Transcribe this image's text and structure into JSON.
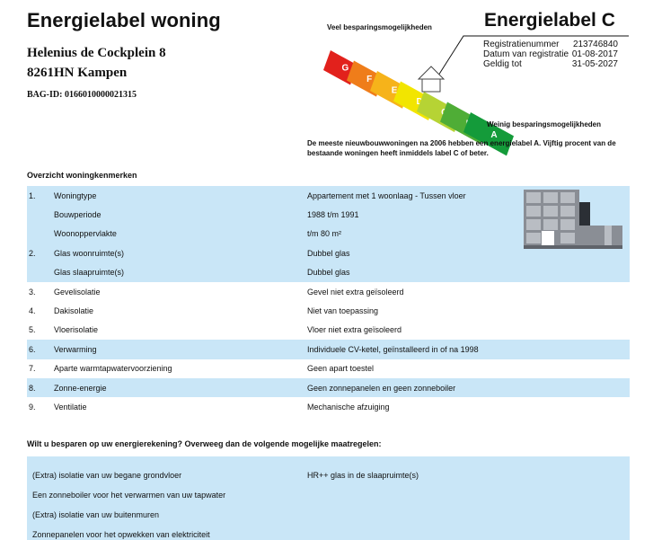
{
  "header": {
    "title": "Energielabel woning",
    "address_line1": "Helenius de Cockplein 8",
    "address_line2": "8261HN Kampen",
    "bag_id": "BAG-ID: 0166010000021315"
  },
  "label": {
    "heading": "Energielabel C",
    "rows": [
      {
        "key": "Registratienummer",
        "value": "213746840"
      },
      {
        "key": "Datum van registratie",
        "value": "01-08-2017"
      },
      {
        "key": "Geldig tot",
        "value": "31-05-2027"
      }
    ],
    "scale_top_text": "Veel besparingsmogelijkheden",
    "scale_bottom_text": "Weinig besparingsmogelijkheden",
    "classes": [
      "G",
      "F",
      "E",
      "D",
      "C",
      "B",
      "A"
    ],
    "class_colors": [
      "#e2211c",
      "#ef7d1a",
      "#f6b31a",
      "#f2e500",
      "#b6d334",
      "#4fad36",
      "#149b3a"
    ],
    "current_class": "C",
    "note": "De meeste nieuwbouwwoningen na 2006 hebben een energielabel A. Vijftig procent van de bestaande woningen heeft inmiddels label C of beter."
  },
  "overview": {
    "title": "Overzicht woningkenmerken",
    "rows": [
      {
        "num": "1.",
        "label": "Woningtype",
        "value": "Appartement met 1 woonlaag - Tussen vloer",
        "shaded": true
      },
      {
        "num": "",
        "label": "Bouwperiode",
        "value": "1988 t/m 1991",
        "shaded": true
      },
      {
        "num": "",
        "label": "Woonoppervlakte",
        "value": "t/m 80 m²",
        "shaded": true
      },
      {
        "num": "2.",
        "label": "Glas woonruimte(s)",
        "value": "Dubbel glas",
        "shaded": true
      },
      {
        "num": "",
        "label": "Glas slaapruimte(s)",
        "value": "Dubbel glas",
        "shaded": true
      },
      {
        "num": "3.",
        "label": "Gevelisolatie",
        "value": "Gevel niet extra geïsoleerd",
        "shaded": false
      },
      {
        "num": "4.",
        "label": "Dakisolatie",
        "value": "Niet van toepassing",
        "shaded": false
      },
      {
        "num": "5.",
        "label": "Vloerisolatie",
        "value": "Vloer niet extra geïsoleerd",
        "shaded": false
      },
      {
        "num": "6.",
        "label": "Verwarming",
        "value": "Individuele CV-ketel, geïnstalleerd in of na 1998",
        "shaded": true
      },
      {
        "num": "7.",
        "label": "Aparte warmtapwatervoorziening",
        "value": "Geen apart toestel",
        "shaded": false
      },
      {
        "num": "8.",
        "label": "Zonne-energie",
        "value": "Geen zonnepanelen en geen zonneboiler",
        "shaded": true
      },
      {
        "num": "9.",
        "label": "Ventilatie",
        "value": "Mechanische afzuiging",
        "shaded": false
      }
    ]
  },
  "tips": {
    "title": "Wilt u besparen op uw energierekening? Overweeg dan de volgende mogelijke maatregelen:",
    "left": [
      "(Extra) isolatie van uw begane grondvloer",
      "Een zonneboiler voor het verwarmen van uw tapwater",
      "(Extra) isolatie van uw buitenmuren",
      "Zonnepanelen voor het opwekken van elektriciteit"
    ],
    "right": [
      "HR++ glas in de slaapruimte(s)"
    ]
  }
}
